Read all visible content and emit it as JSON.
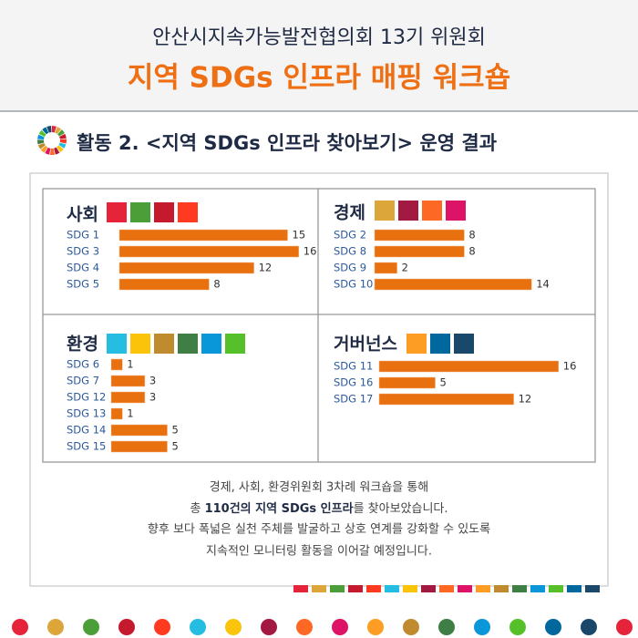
{
  "header": {
    "subtitle": "안산시지속가능발전협의회 13기 위원회",
    "title": "지역 SDGs 인프라 매핑 워크숍",
    "section": "활동 2. <지역 SDGs 인프라 찾아보기> 운영 결과"
  },
  "chart_data": [
    {
      "type": "bar",
      "title": "사회",
      "categories": [
        "SDG 1",
        "SDG 3",
        "SDG 4",
        "SDG 5"
      ],
      "values": [
        15,
        16,
        12,
        8
      ],
      "color": "#e8700e"
    },
    {
      "type": "bar",
      "title": "경제",
      "categories": [
        "SDG 2",
        "SDG 8",
        "SDG 9",
        "SDG 10"
      ],
      "values": [
        8,
        8,
        2,
        14
      ],
      "color": "#e8700e"
    },
    {
      "type": "bar",
      "title": "환경",
      "categories": [
        "SDG 6",
        "SDG 7",
        "SDG 12",
        "SDG 13",
        "SDG 14",
        "SDG 15"
      ],
      "values": [
        1,
        3,
        3,
        1,
        5,
        5
      ],
      "color": "#e8700e"
    },
    {
      "type": "bar",
      "title": "거버넌스",
      "categories": [
        "SDG 11",
        "SDG 16",
        "SDG 17"
      ],
      "values": [
        16,
        5,
        12
      ],
      "color": "#e8700e"
    }
  ],
  "footer": {
    "line1": "경제, 사회, 환경위원회 3차례 워크숍을 통해",
    "line2_before": "총 ",
    "line2_bold": "110건의 지역 SDGs 인프라",
    "line2_after": "를 찾아보았습니다.",
    "line3": "향후 보다 폭넓은 실천 주체를 발굴하고 상호 연계를 강화할 수 있도록",
    "line4": "지속적인 모니터링 활동을 이어갈 예정입니다."
  }
}
